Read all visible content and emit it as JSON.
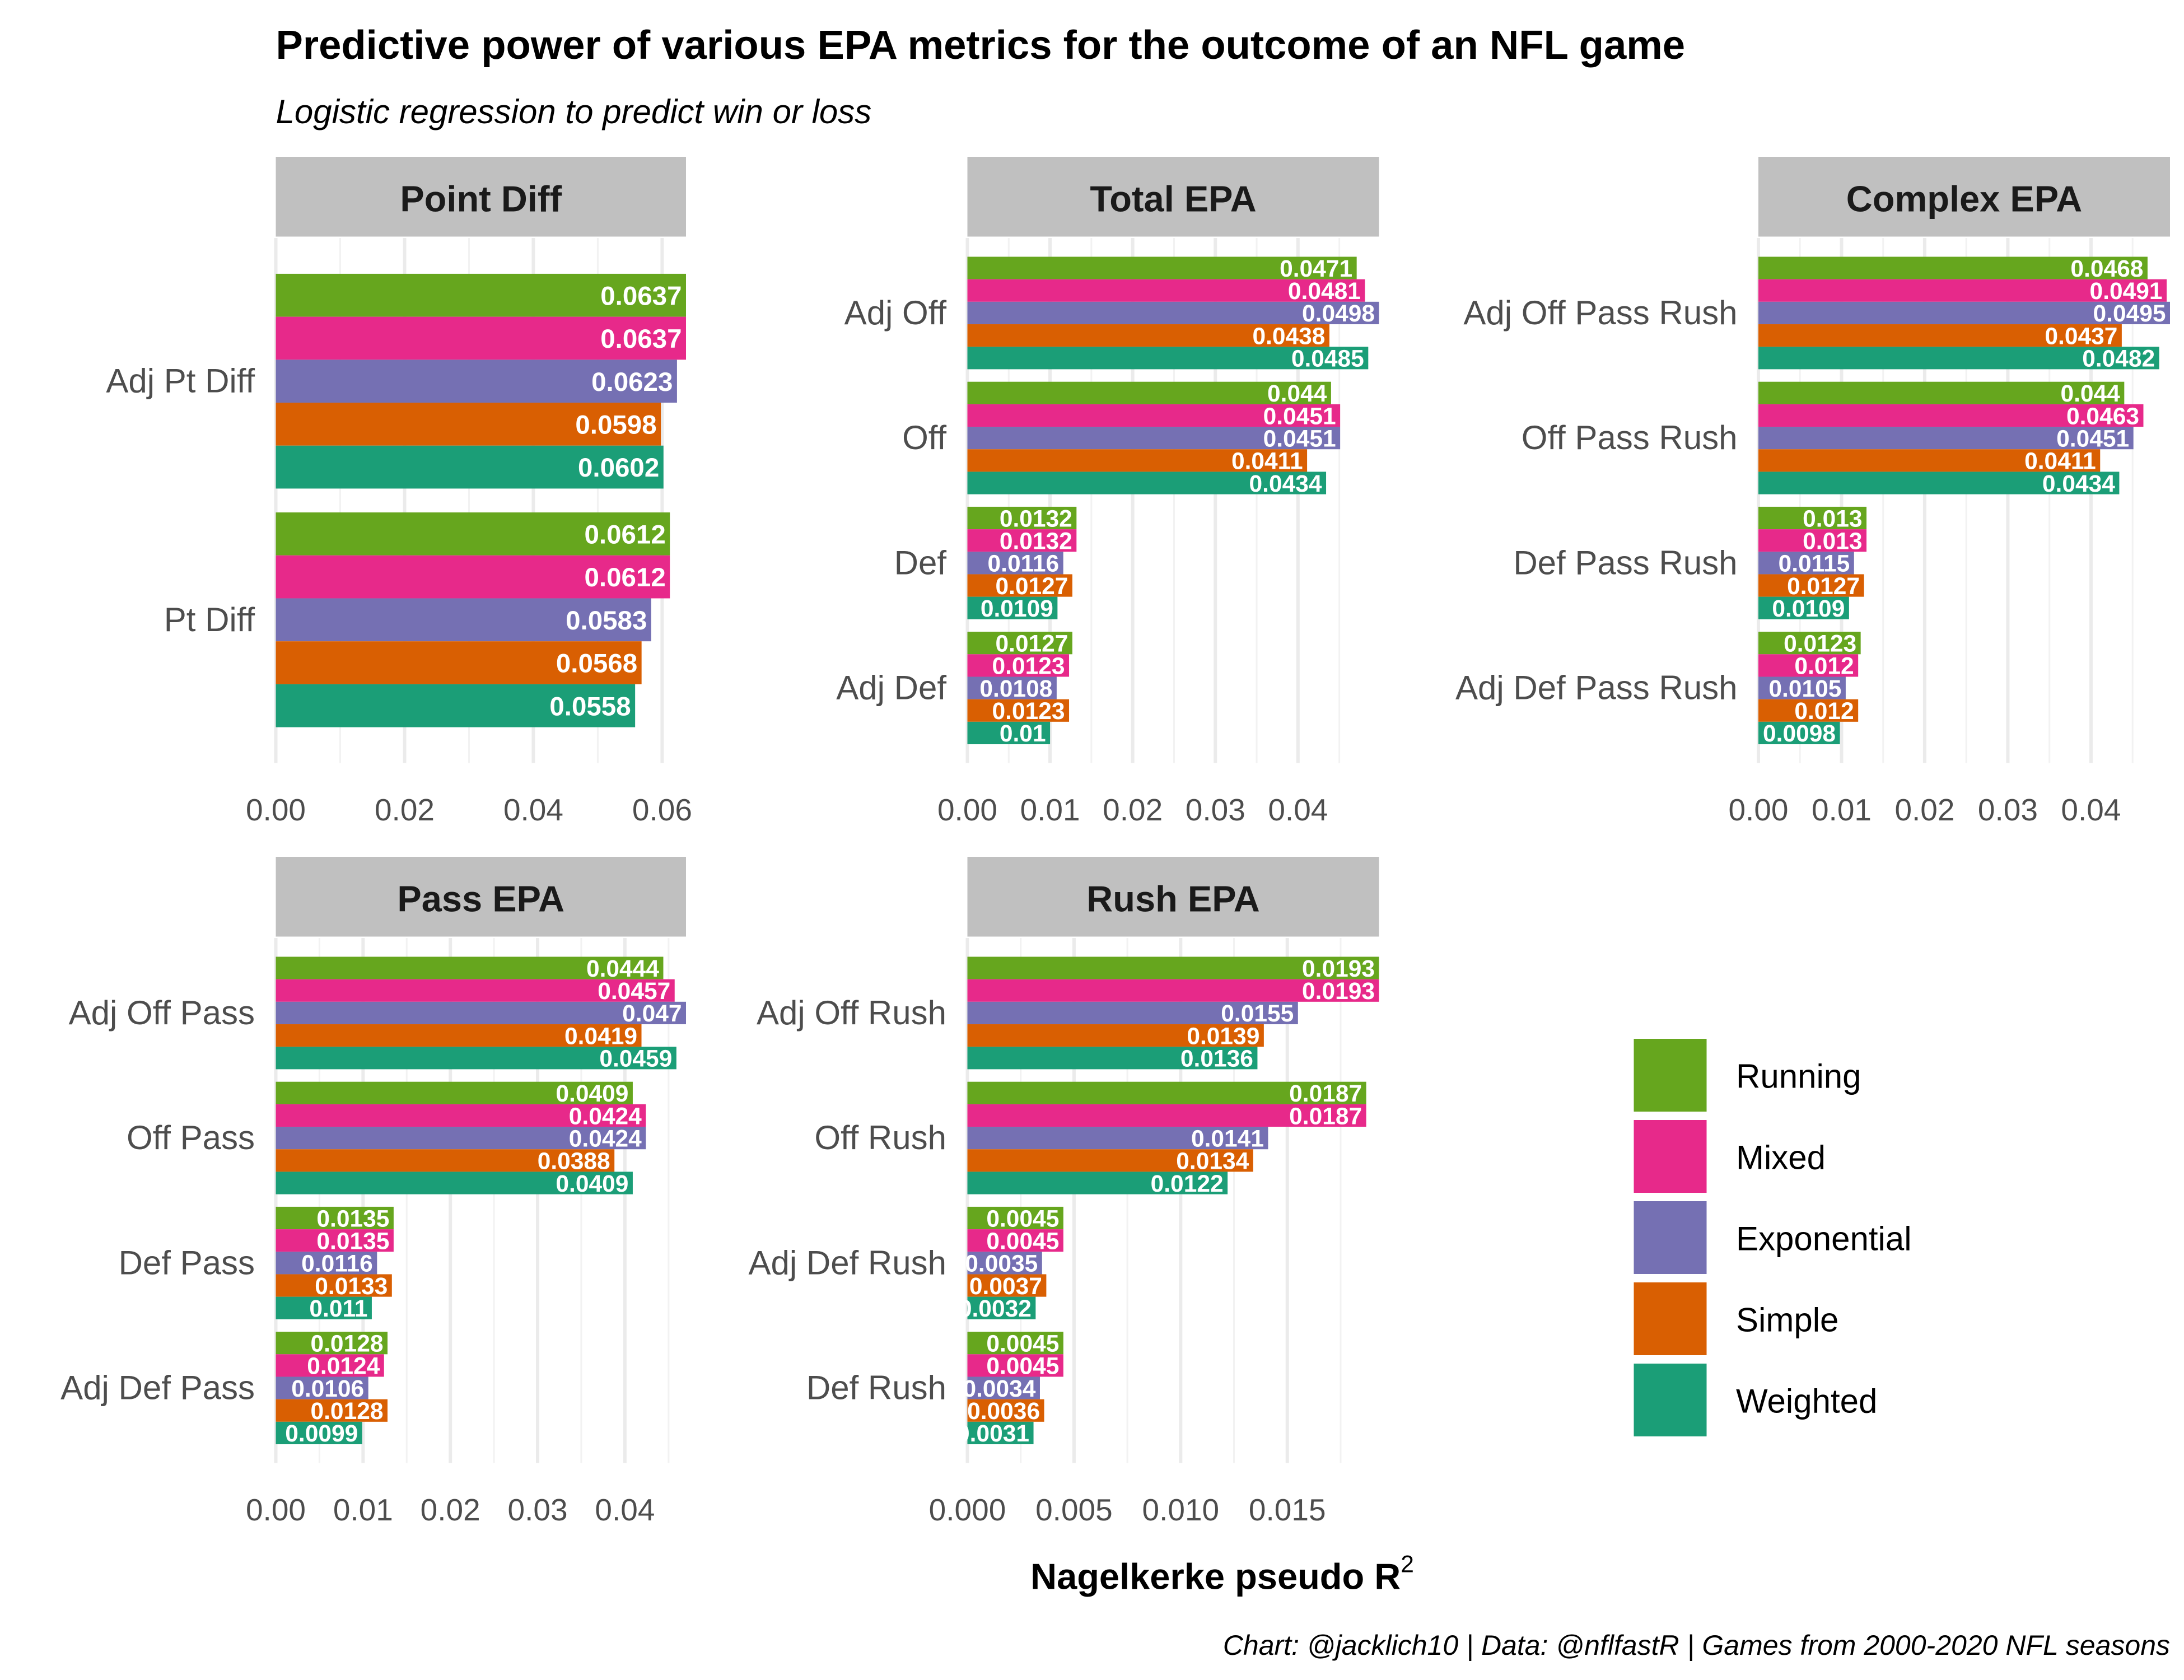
{
  "title": "Predictive power of various EPA metrics for the outcome of an NFL game",
  "subtitle": "Logistic regression to predict win or loss",
  "caption": "Chart: @jacklich10 | Data: @nflfastR | Games from 2000-2020 NFL seasons",
  "chart_data": {
    "type": "bar",
    "orientation": "horizontal",
    "facets": true,
    "grid": true,
    "legend_placement": "right",
    "xlabel": "Nagelkerke pseudo R",
    "xlabel_superscript": "2",
    "series_names": [
      "Running",
      "Mixed",
      "Exponential",
      "Simple",
      "Weighted"
    ],
    "colors": {
      "Running": "#66a61e",
      "Mixed": "#e7298a",
      "Exponential": "#7570b3",
      "Simple": "#d95f02",
      "Weighted": "#1b9e77"
    },
    "panels": [
      {
        "title": "Point Diff",
        "xlim": [
          0,
          0.0637
        ],
        "ticks": [
          0,
          0.02,
          0.04,
          0.06
        ],
        "tick_labels": [
          "0.00",
          "0.02",
          "0.04",
          "0.06"
        ],
        "categories": [
          "Adj Pt Diff",
          "Pt Diff"
        ],
        "values": [
          [
            0.0637,
            0.0637,
            0.0623,
            0.0598,
            0.0602
          ],
          [
            0.0612,
            0.0612,
            0.0583,
            0.0568,
            0.0558
          ]
        ]
      },
      {
        "title": "Total EPA",
        "xlim": [
          0,
          0.0498
        ],
        "ticks": [
          0,
          0.01,
          0.02,
          0.03,
          0.04
        ],
        "tick_labels": [
          "0.00",
          "0.01",
          "0.02",
          "0.03",
          "0.04"
        ],
        "categories": [
          "Adj Off",
          "Off",
          "Def",
          "Adj Def"
        ],
        "values": [
          [
            0.0471,
            0.0481,
            0.0498,
            0.0438,
            0.0485
          ],
          [
            0.044,
            0.0451,
            0.0451,
            0.0411,
            0.0434
          ],
          [
            0.0132,
            0.0132,
            0.0116,
            0.0127,
            0.0109
          ],
          [
            0.0127,
            0.0123,
            0.0108,
            0.0123,
            0.01
          ]
        ]
      },
      {
        "title": "Complex EPA",
        "xlim": [
          0,
          0.0495
        ],
        "ticks": [
          0,
          0.01,
          0.02,
          0.03,
          0.04
        ],
        "tick_labels": [
          "0.00",
          "0.01",
          "0.02",
          "0.03",
          "0.04"
        ],
        "categories": [
          "Adj Off Pass Rush",
          "Off Pass Rush",
          "Def Pass Rush",
          "Adj Def Pass Rush"
        ],
        "values": [
          [
            0.0468,
            0.0491,
            0.0495,
            0.0437,
            0.0482
          ],
          [
            0.044,
            0.0463,
            0.0451,
            0.0411,
            0.0434
          ],
          [
            0.013,
            0.013,
            0.0115,
            0.0127,
            0.0109
          ],
          [
            0.0123,
            0.012,
            0.0105,
            0.012,
            0.0098
          ]
        ]
      },
      {
        "title": "Pass EPA",
        "xlim": [
          0,
          0.047
        ],
        "ticks": [
          0,
          0.01,
          0.02,
          0.03,
          0.04
        ],
        "tick_labels": [
          "0.00",
          "0.01",
          "0.02",
          "0.03",
          "0.04"
        ],
        "categories": [
          "Adj Off Pass",
          "Off Pass",
          "Def Pass",
          "Adj Def Pass"
        ],
        "values": [
          [
            0.0444,
            0.0457,
            0.047,
            0.0419,
            0.0459
          ],
          [
            0.0409,
            0.0424,
            0.0424,
            0.0388,
            0.0409
          ],
          [
            0.0135,
            0.0135,
            0.0116,
            0.0133,
            0.011
          ],
          [
            0.0128,
            0.0124,
            0.0106,
            0.0128,
            0.0099
          ]
        ]
      },
      {
        "title": "Rush EPA",
        "xlim": [
          0,
          0.0193
        ],
        "ticks": [
          0,
          0.005,
          0.01,
          0.015
        ],
        "tick_labels": [
          "0.000",
          "0.005",
          "0.010",
          "0.015"
        ],
        "categories": [
          "Adj Off Rush",
          "Off Rush",
          "Adj Def Rush",
          "Def Rush"
        ],
        "values": [
          [
            0.0193,
            0.0193,
            0.0155,
            0.0139,
            0.0136
          ],
          [
            0.0187,
            0.0187,
            0.0141,
            0.0134,
            0.0122
          ],
          [
            0.0045,
            0.0045,
            0.0035,
            0.0037,
            0.0032
          ],
          [
            0.0045,
            0.0045,
            0.0034,
            0.0036,
            0.0031
          ]
        ]
      }
    ]
  }
}
